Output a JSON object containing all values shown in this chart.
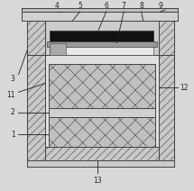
{
  "bg_color": "#d8d8d8",
  "lc": "#444444",
  "bc": "#111111",
  "figsize": [
    2.15,
    2.12
  ],
  "dpi": 100,
  "label_fs": 5.5,
  "label_color": "#222222",
  "hatch_fc": "#c8c8c8",
  "coil_fc": "#c0c0c0",
  "inner_fc": "#e0e0e0",
  "gap_fc": "#d0d0d0",
  "top_white_fc": "#e8e8e8"
}
